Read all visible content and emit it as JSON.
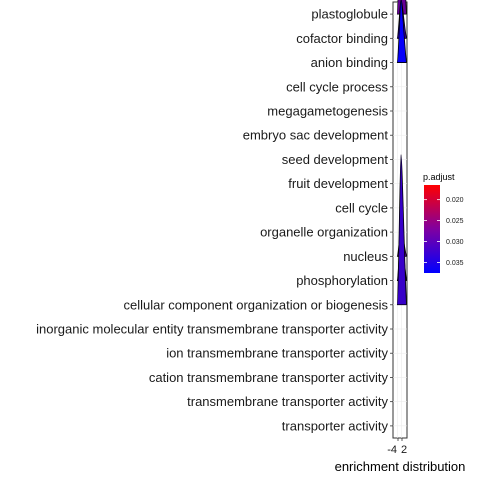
{
  "chart_data": {
    "type": "ridgeline",
    "title": "",
    "xlabel": "enrichment distribution",
    "ylabel": "",
    "x_tick_labels": [
      "-4",
      "2"
    ],
    "grid": true,
    "legend_placement": "right",
    "legend": {
      "title": "p.adjust",
      "ticks": [
        "0.020",
        "0.025",
        "0.030",
        "0.035"
      ],
      "tick_values": [
        0.02,
        0.025,
        0.03,
        0.035
      ],
      "range": [
        0.0165,
        0.0375
      ],
      "low_color": "#ff0000",
      "high_color": "#0000ff"
    },
    "categories": [
      "transporter activity",
      "transmembrane transporter activity",
      "cation transmembrane transporter activity",
      "ion transmembrane transporter activity",
      "inorganic molecular entity transmembrane transporter activity",
      "cellular component organization or biogenesis",
      "phosphorylation",
      "nucleus",
      "organelle organization",
      "cell cycle",
      "fruit development",
      "seed development",
      "embryo sac development",
      "megagametogenesis",
      "cell cycle process",
      "anion binding",
      "cofactor binding",
      "plastoglobule"
    ],
    "ridges": [
      {
        "category": "cellular component organization or biogenesis",
        "p_adjust": 0.033,
        "peak_height": 6.2
      },
      {
        "category": "phosphorylation",
        "p_adjust": 0.031,
        "peak_height": 2.2
      },
      {
        "category": "nucleus",
        "p_adjust": 0.03,
        "peak_height": 1.2
      },
      {
        "category": "anion binding",
        "p_adjust": 0.037,
        "peak_height": 2.6
      },
      {
        "category": "cofactor binding",
        "p_adjust": 0.033,
        "peak_height": 1.6
      },
      {
        "category": "plastoglobule",
        "p_adjust": 0.029,
        "peak_height": 5.6
      }
    ]
  }
}
